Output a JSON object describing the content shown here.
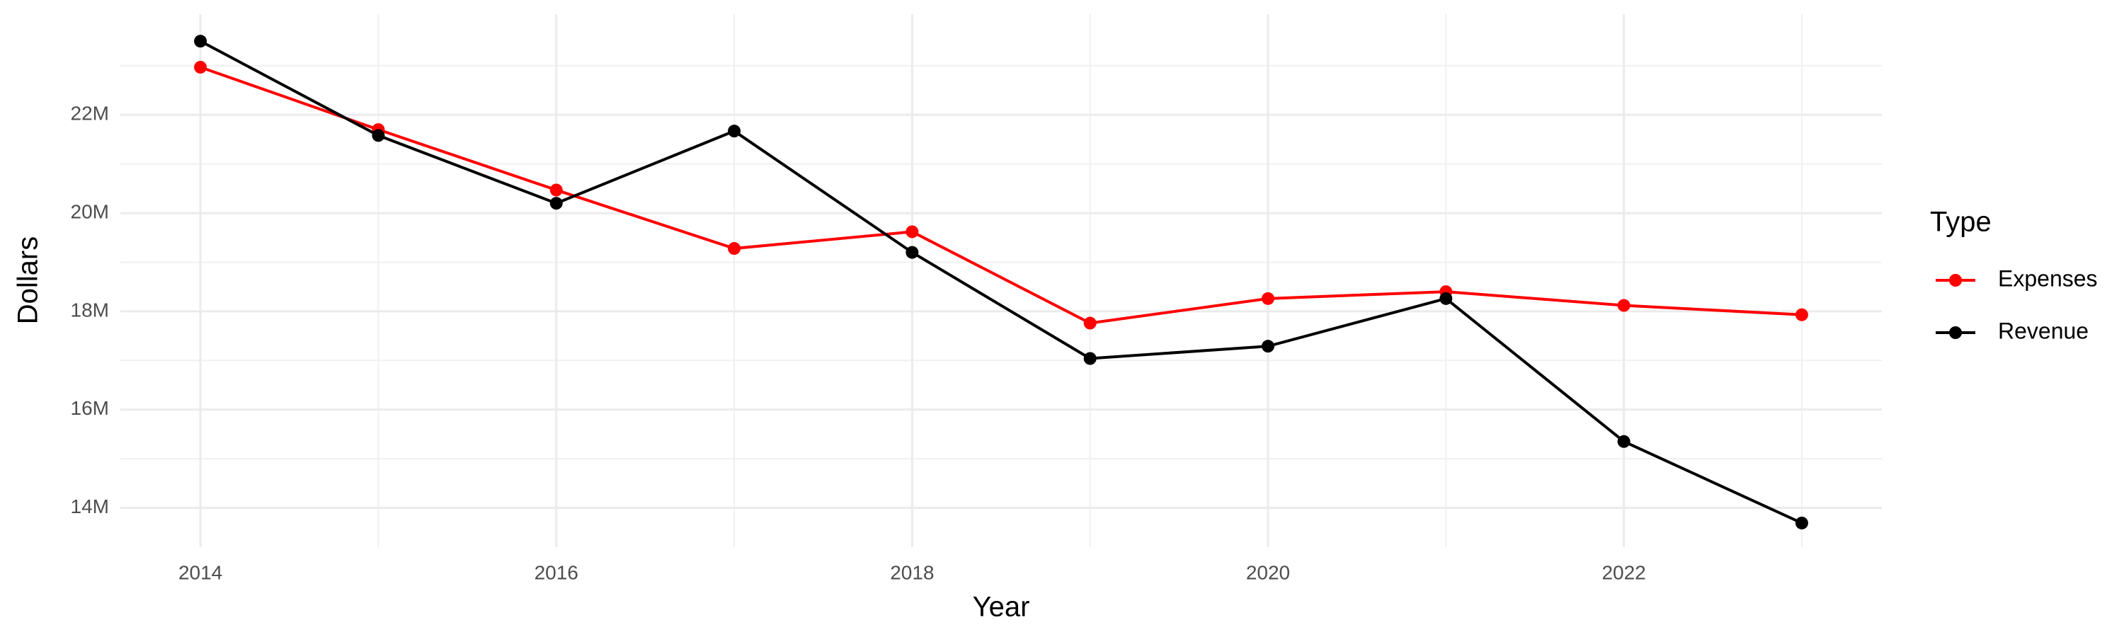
{
  "chart_data": {
    "type": "line",
    "x_label": "Year",
    "y_label": "Dollars",
    "legend_title": "Type",
    "legend_position": "right",
    "grid": true,
    "x": [
      2014,
      2015,
      2016,
      2017,
      2018,
      2019,
      2020,
      2021,
      2022,
      2023
    ],
    "series": [
      {
        "name": "Expenses",
        "color": "#ff0000",
        "values": [
          22970000,
          21700000,
          20470000,
          19280000,
          19620000,
          17760000,
          18260000,
          18400000,
          18120000,
          17930000
        ]
      },
      {
        "name": "Revenue",
        "color": "#000000",
        "values": [
          23500000,
          21580000,
          20200000,
          21670000,
          19200000,
          17040000,
          17290000,
          18260000,
          15350000,
          13690000
        ]
      }
    ],
    "xlim": [
      2013.55,
      2023.45
    ],
    "xticks": [
      2014,
      2016,
      2018,
      2020,
      2022
    ],
    "ylim": [
      13200000,
      24050000
    ],
    "yticks": [
      {
        "value": 14000000,
        "label": "14M"
      },
      {
        "value": 16000000,
        "label": "16M"
      },
      {
        "value": 18000000,
        "label": "18M"
      },
      {
        "value": 20000000,
        "label": "20M"
      },
      {
        "value": 22000000,
        "label": "22M"
      }
    ]
  }
}
